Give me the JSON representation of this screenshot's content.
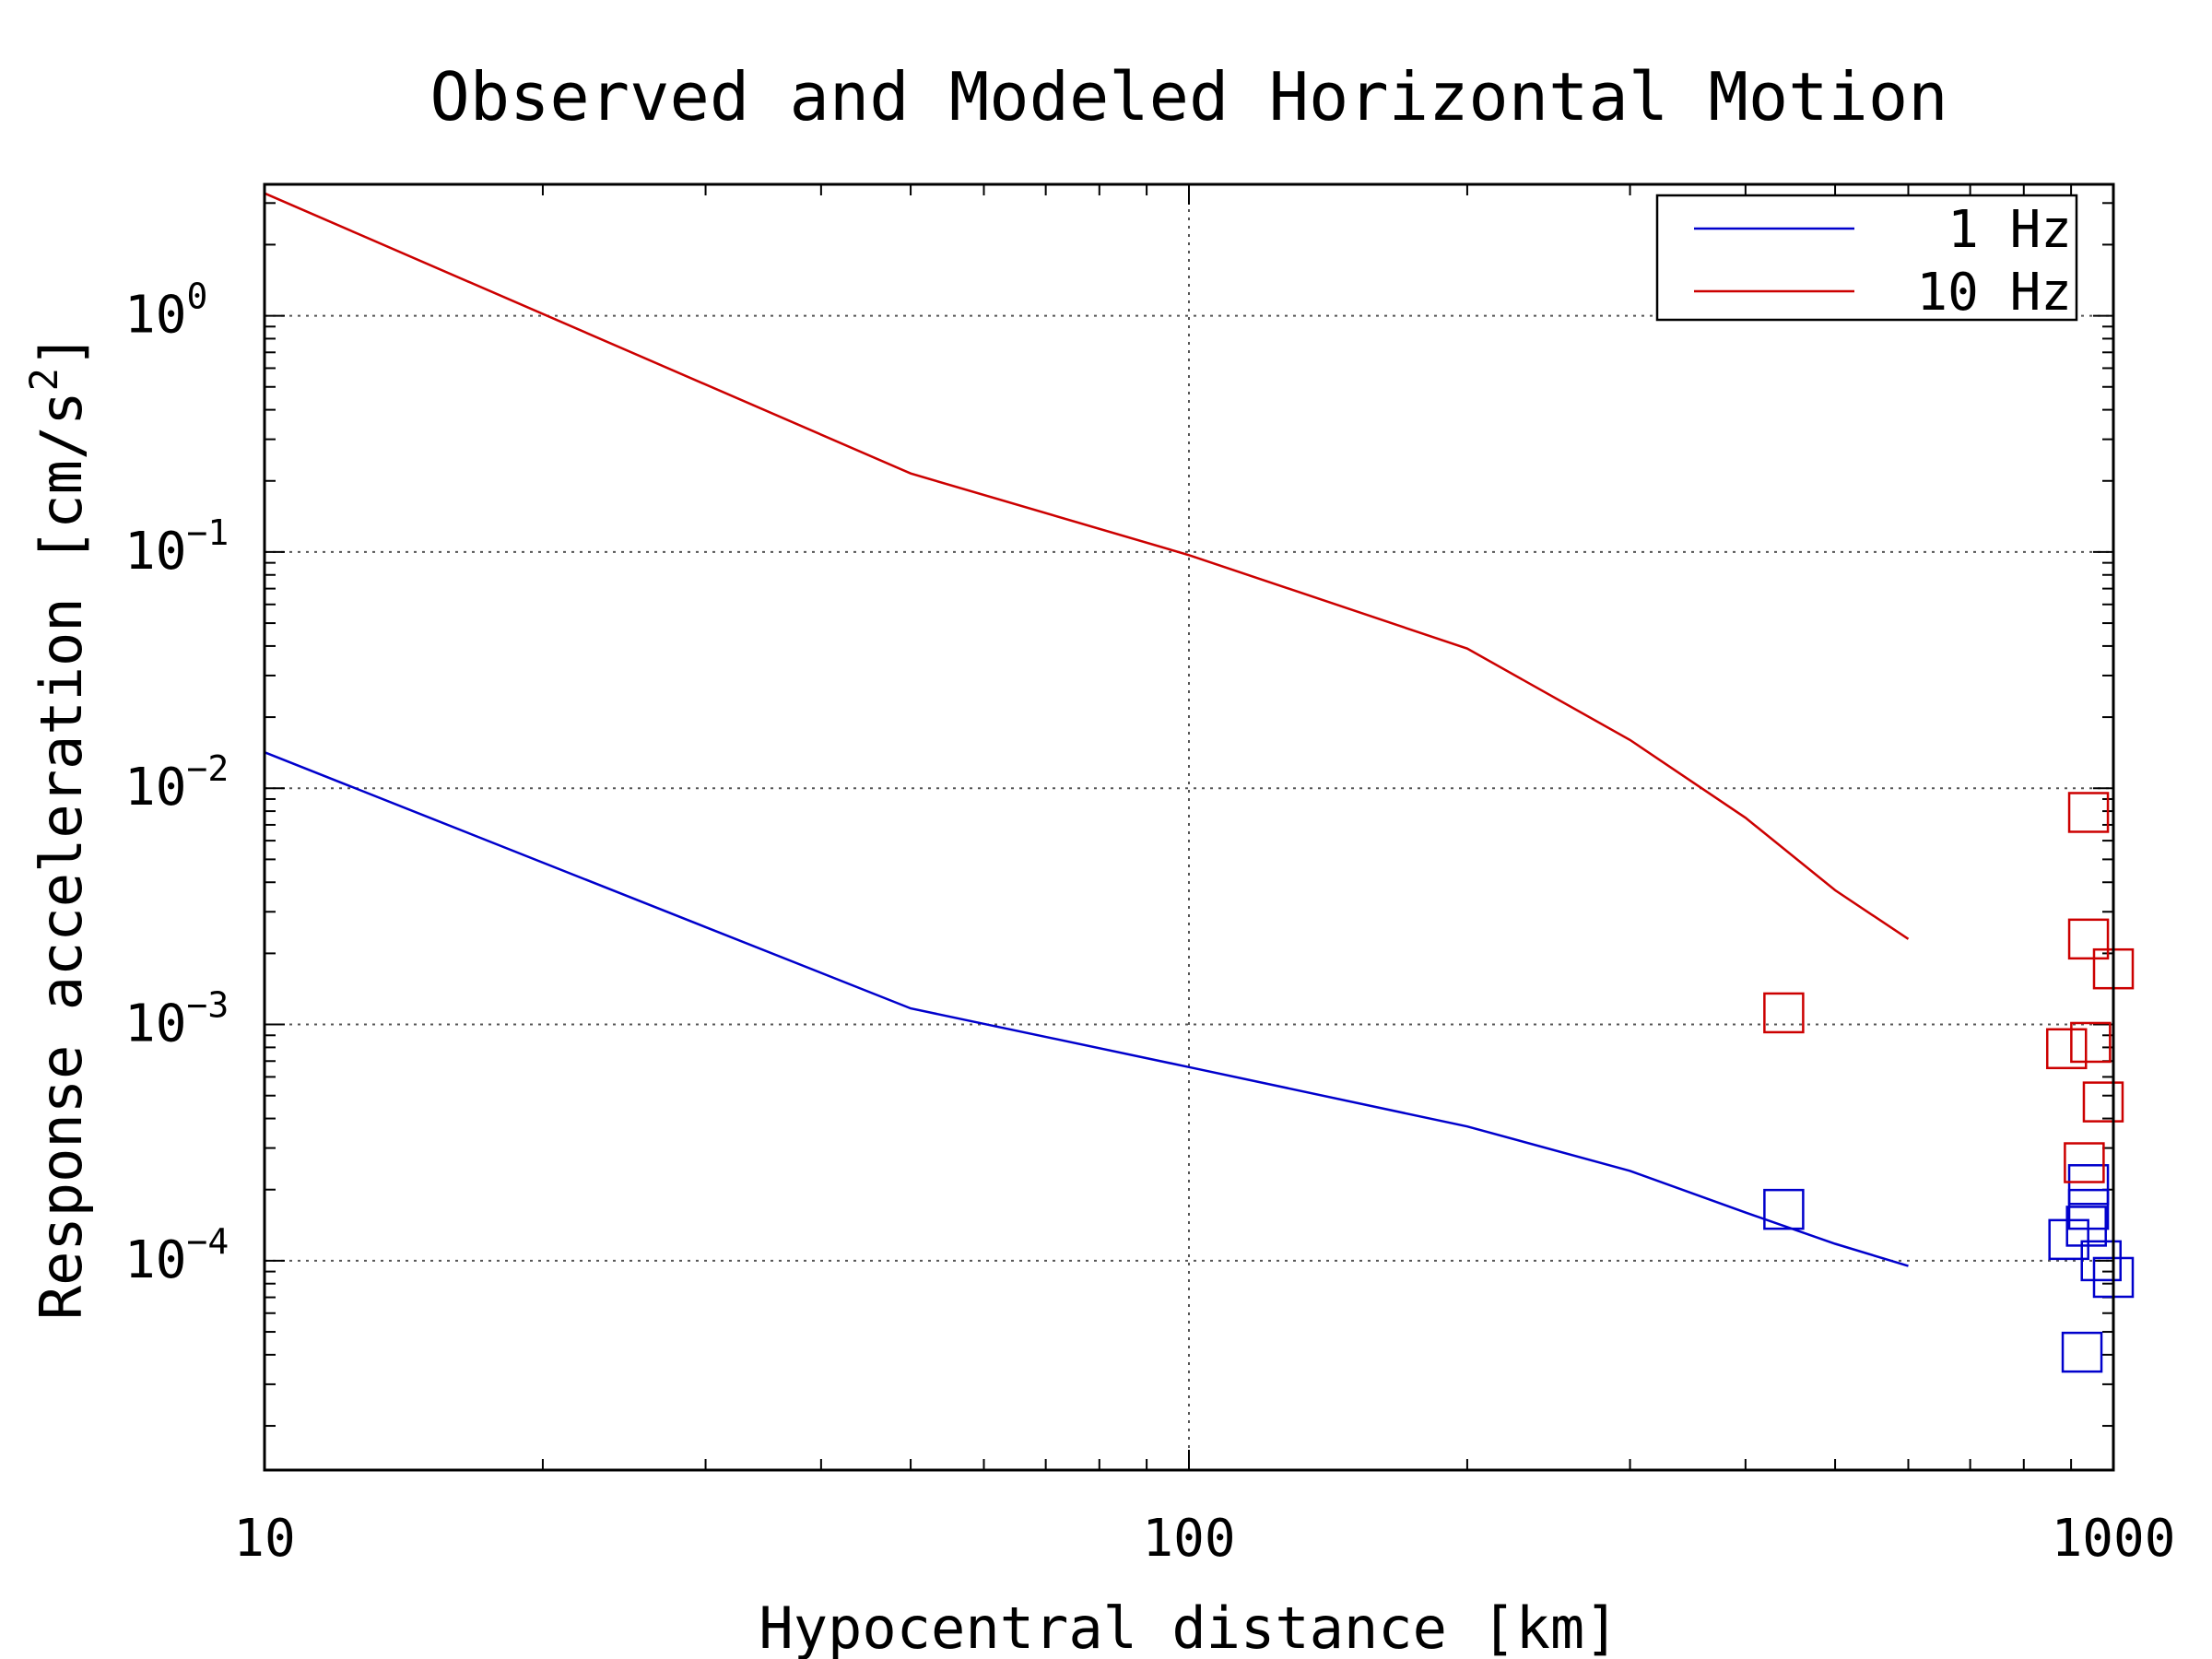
{
  "chart_data": {
    "type": "line",
    "title": "Observed and Modeled Horizontal Motion",
    "xlabel": "Hypocentral distance [km]",
    "ylabel": "Response acceleration [cm/s",
    "ylabel_exponent": "2",
    "ylabel_suffix": "]",
    "xscale": "log",
    "yscale": "log",
    "xlim": [
      10,
      1000
    ],
    "ylim": [
      1.3e-05,
      3.6
    ],
    "grid": true,
    "legend_position": "top-right",
    "x_ticks": [
      {
        "value": 10,
        "label": "10"
      },
      {
        "value": 100,
        "label": "100"
      },
      {
        "value": 1000,
        "label": "1000"
      }
    ],
    "y_ticks": [
      {
        "value": 1,
        "base": "10",
        "exponent": "0"
      },
      {
        "value": 0.1,
        "base": "10",
        "exponent": "−1"
      },
      {
        "value": 0.01,
        "base": "10",
        "exponent": "−2"
      },
      {
        "value": 0.001,
        "base": "10",
        "exponent": "−3"
      },
      {
        "value": 0.0001,
        "base": "10",
        "exponent": "−4"
      }
    ],
    "series": [
      {
        "name": "1 Hz",
        "color": "#0000cc",
        "x": [
          10,
          50,
          100,
          200,
          300,
          400,
          500,
          600
        ],
        "y": [
          0.0142,
          0.00117,
          0.00066,
          0.00037,
          0.00024,
          0.00016,
          0.000118,
          9.5e-05
        ]
      },
      {
        "name": "10 Hz",
        "color": "#cc0000",
        "x": [
          10,
          50,
          100,
          200,
          300,
          400,
          500,
          600
        ],
        "y": [
          3.3,
          0.215,
          0.097,
          0.039,
          0.016,
          0.0075,
          0.0037,
          0.0023
        ]
      }
    ],
    "observations": [
      {
        "series": "1 Hz",
        "color": "#0000cc",
        "points": [
          {
            "x": 440,
            "y": 0.000165
          },
          {
            "x": 940,
            "y": 0.00021
          },
          {
            "x": 940,
            "y": 0.000165
          },
          {
            "x": 935,
            "y": 0.00014
          },
          {
            "x": 895,
            "y": 0.000123
          },
          {
            "x": 970,
            "y": 0.0001
          },
          {
            "x": 1000,
            "y": 8.5e-05
          },
          {
            "x": 925,
            "y": 4.1e-05
          }
        ]
      },
      {
        "series": "10 Hz",
        "color": "#cc0000",
        "points": [
          {
            "x": 440,
            "y": 0.00112
          },
          {
            "x": 940,
            "y": 0.0079
          },
          {
            "x": 940,
            "y": 0.0023
          },
          {
            "x": 1000,
            "y": 0.00172
          },
          {
            "x": 945,
            "y": 0.00084
          },
          {
            "x": 890,
            "y": 0.00079
          },
          {
            "x": 975,
            "y": 0.00047
          },
          {
            "x": 930,
            "y": 0.00026
          }
        ]
      }
    ]
  }
}
